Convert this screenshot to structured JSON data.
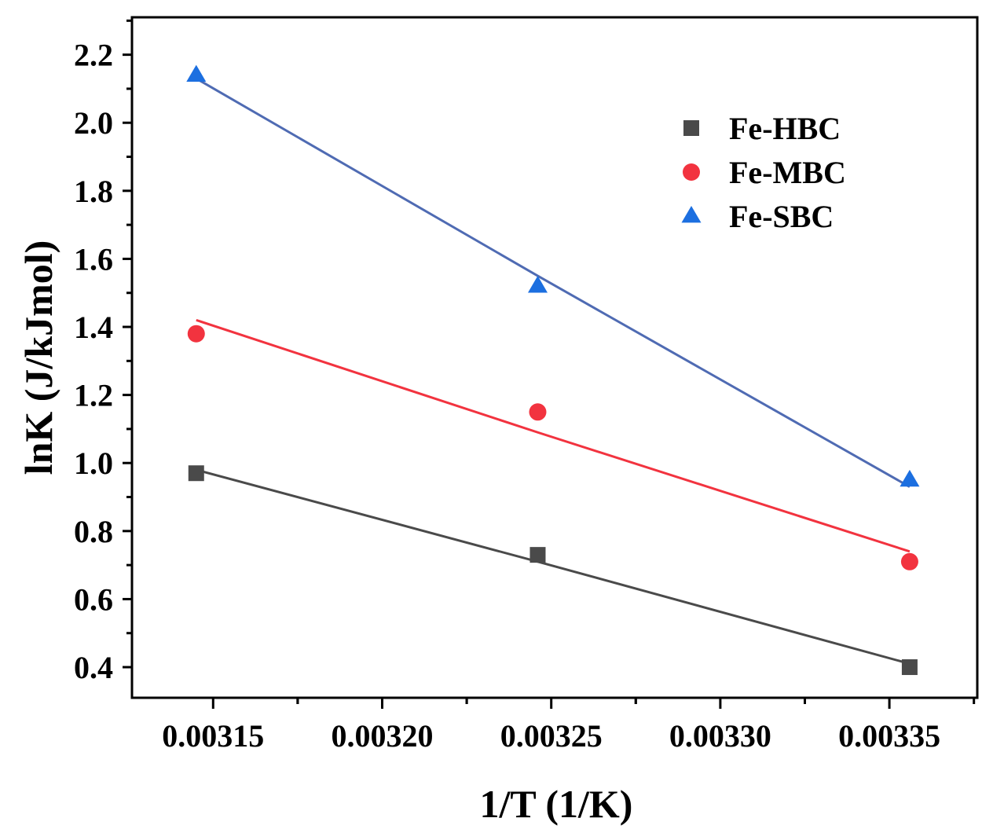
{
  "chart_data": {
    "type": "scatter",
    "title": "",
    "xlabel": "1/T (1/K)",
    "ylabel": "lnK (J/kJmol)",
    "xlim": [
      0.003126,
      0.003376
    ],
    "ylim": [
      0.31,
      2.31
    ],
    "x_ticks": [
      "0.00315",
      "0.00320",
      "0.00325",
      "0.00330",
      "0.00335"
    ],
    "y_ticks": [
      "0.4",
      "0.6",
      "0.8",
      "1.0",
      "1.2",
      "1.4",
      "1.6",
      "1.8",
      "2.0",
      "2.2"
    ],
    "legend_position": "top-right",
    "x": [
      0.003145,
      0.003246,
      0.003356
    ],
    "series": [
      {
        "name": "Fe-HBC",
        "marker": "square",
        "color": "#4a4a4a",
        "values": [
          0.97,
          0.73,
          0.4
        ],
        "fit": [
          0.98,
          0.71,
          0.41
        ]
      },
      {
        "name": "Fe-MBC",
        "marker": "circle",
        "color": "#f2333f",
        "values": [
          1.38,
          1.15,
          0.71
        ],
        "fit": [
          1.42,
          1.09,
          0.74
        ]
      },
      {
        "name": "Fe-SBC",
        "marker": "triangle",
        "color": "#1c6fe0",
        "line_color": "#4f6bb3",
        "values": [
          2.14,
          1.52,
          0.95
        ],
        "fit": [
          2.13,
          1.55,
          0.93
        ]
      }
    ]
  }
}
